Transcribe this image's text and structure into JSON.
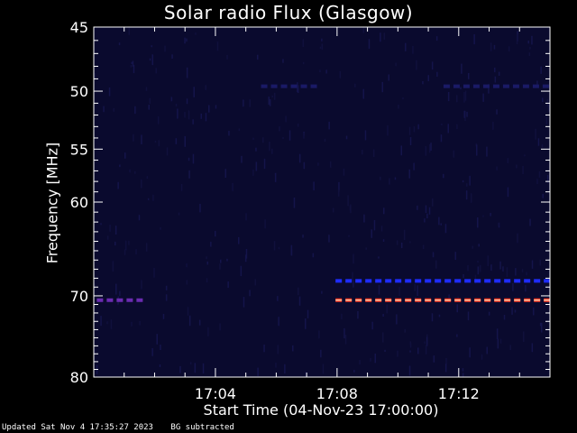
{
  "chart_data": {
    "type": "heatmap",
    "title": "Solar radio Flux (Glasgow)",
    "xlabel": "Start Time (04-Nov-23 17:00:00)",
    "ylabel": "Frequency [MHz]",
    "x_range_minutes": [
      0,
      15
    ],
    "x_ticks": [
      {
        "minute": 4,
        "label": "17:04"
      },
      {
        "minute": 8,
        "label": "17:08"
      },
      {
        "minute": 12,
        "label": "17:12"
      }
    ],
    "y_range_mhz": [
      45,
      80
    ],
    "y_scale": "log",
    "y_ticks": [
      45,
      50,
      55,
      60,
      70,
      80
    ],
    "background_color": "#0a0a2e",
    "emission_features": [
      {
        "freq_mhz": 70.5,
        "start_min": 0.1,
        "end_min": 1.7,
        "color": "#6a2bb0"
      },
      {
        "freq_mhz": 68.3,
        "start_min": 7.95,
        "end_min": 15.0,
        "color": "#1e2cff"
      },
      {
        "freq_mhz": 70.5,
        "start_min": 7.95,
        "end_min": 15.0,
        "color": "#ff3a22"
      },
      {
        "freq_mhz": 49.6,
        "start_min": 5.5,
        "end_min": 7.4,
        "color": "#1a1a66"
      },
      {
        "freq_mhz": 49.6,
        "start_min": 11.5,
        "end_min": 15.0,
        "color": "#1a1a66"
      }
    ]
  },
  "footer": {
    "updated": "Updated Sat Nov  4 17:35:27 2023",
    "note": "BG subtracted"
  }
}
